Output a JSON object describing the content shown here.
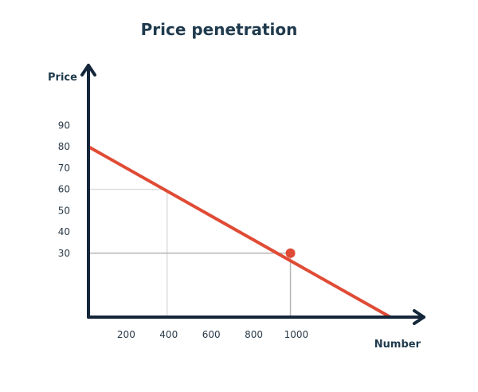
{
  "chart_data": {
    "type": "line",
    "title": "Price penetration",
    "xlabel": "Number",
    "ylabel": "Price",
    "x_ticks": [
      200,
      400,
      600,
      800,
      1000
    ],
    "y_ticks": [
      30,
      40,
      50,
      60,
      70,
      80,
      90
    ],
    "xlim": [
      0,
      1420
    ],
    "ylim": [
      0,
      95
    ],
    "series": [
      {
        "x": [
          0,
          1420
        ],
        "y": [
          80,
          0
        ]
      }
    ],
    "highlight_point": {
      "x": 950,
      "y": 30
    },
    "reference_lines": [
      {
        "x": 370,
        "y": 60
      },
      {
        "x": 950,
        "y": 30
      }
    ],
    "grid": false
  },
  "colors": {
    "title": "#1f3a4d",
    "axis": "#14263a",
    "tick_text": "#2a3a48",
    "series": "#e04b35",
    "point": "#e04b35",
    "ref_line_light": "#dddddd",
    "ref_line_dark": "#b5b5b5"
  }
}
